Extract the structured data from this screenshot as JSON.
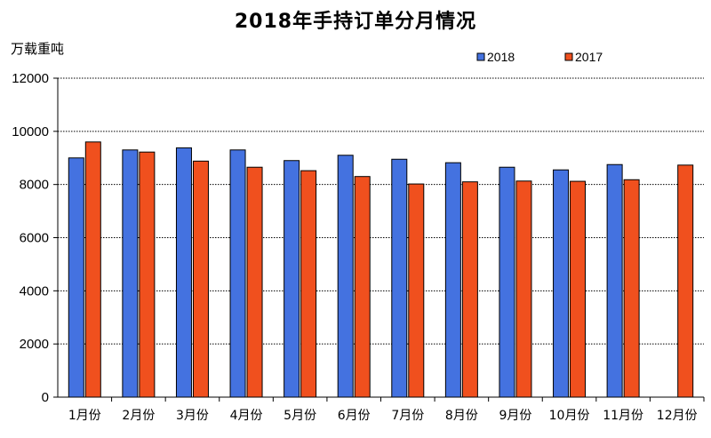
{
  "chart_data": {
    "type": "bar",
    "title": "2018年手持订单分月情况",
    "ylabel": "万载重吨",
    "xlabel": "",
    "ylim": [
      0,
      12000
    ],
    "yticks": [
      0,
      2000,
      4000,
      6000,
      8000,
      10000,
      12000
    ],
    "grid": true,
    "legend_position": "top-right",
    "categories": [
      "1月份",
      "2月份",
      "3月份",
      "4月份",
      "5月份",
      "6月份",
      "7月份",
      "8月份",
      "9月份",
      "10月份",
      "11月份",
      "12月份"
    ],
    "series": [
      {
        "name": "2018",
        "color": "#4472e0",
        "values": [
          9000,
          9300,
          9380,
          9300,
          8900,
          9100,
          8950,
          8820,
          8650,
          8550,
          8750,
          null
        ]
      },
      {
        "name": "2017",
        "color": "#f0501e",
        "values": [
          9600,
          9220,
          8880,
          8650,
          8520,
          8300,
          8020,
          8100,
          8130,
          8120,
          8180,
          8730
        ]
      }
    ]
  }
}
